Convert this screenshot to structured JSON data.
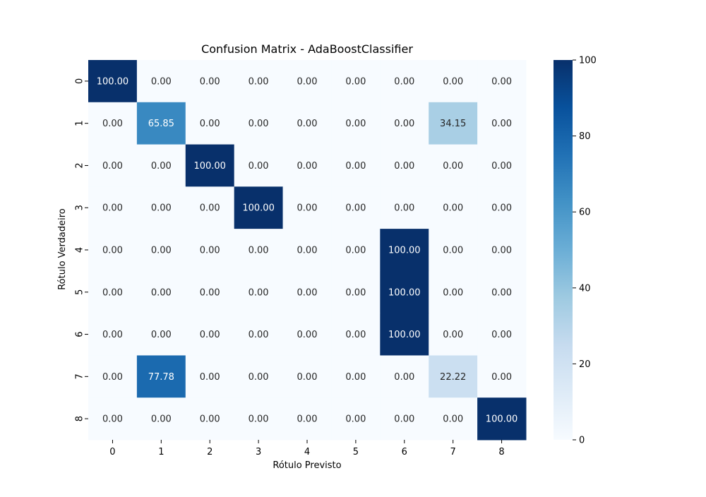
{
  "chart_data": {
    "type": "heatmap",
    "title": "Confusion Matrix - AdaBoostClassifier",
    "xlabel": "Rótulo Previsto",
    "ylabel": "Rótulo Verdadeiro",
    "x_categories": [
      "0",
      "1",
      "2",
      "3",
      "4",
      "5",
      "6",
      "7",
      "8"
    ],
    "y_categories": [
      "0",
      "1",
      "2",
      "3",
      "4",
      "5",
      "6",
      "7",
      "8"
    ],
    "values": [
      [
        100.0,
        0.0,
        0.0,
        0.0,
        0.0,
        0.0,
        0.0,
        0.0,
        0.0
      ],
      [
        0.0,
        65.85,
        0.0,
        0.0,
        0.0,
        0.0,
        0.0,
        34.15,
        0.0
      ],
      [
        0.0,
        0.0,
        100.0,
        0.0,
        0.0,
        0.0,
        0.0,
        0.0,
        0.0
      ],
      [
        0.0,
        0.0,
        0.0,
        100.0,
        0.0,
        0.0,
        0.0,
        0.0,
        0.0
      ],
      [
        0.0,
        0.0,
        0.0,
        0.0,
        0.0,
        0.0,
        100.0,
        0.0,
        0.0
      ],
      [
        0.0,
        0.0,
        0.0,
        0.0,
        0.0,
        0.0,
        100.0,
        0.0,
        0.0
      ],
      [
        0.0,
        0.0,
        0.0,
        0.0,
        0.0,
        0.0,
        100.0,
        0.0,
        0.0
      ],
      [
        0.0,
        77.78,
        0.0,
        0.0,
        0.0,
        0.0,
        0.0,
        22.22,
        0.0
      ],
      [
        0.0,
        0.0,
        0.0,
        0.0,
        0.0,
        0.0,
        0.0,
        0.0,
        100.0
      ]
    ],
    "value_format": "0.00",
    "colormap": "Blues",
    "colorbar": {
      "vmin": 0,
      "vmax": 100,
      "ticks": [
        0,
        20,
        40,
        60,
        80,
        100
      ]
    },
    "grid": false
  }
}
